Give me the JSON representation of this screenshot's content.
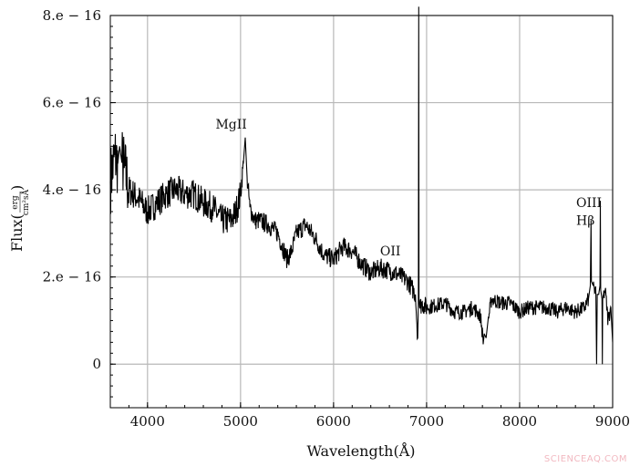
{
  "chart_data": {
    "type": "line",
    "title": "",
    "xlabel": "Wavelength(Å)",
    "ylabel": "Flux(erg / cm²sÅ)",
    "ylabel_parts": {
      "prefix": "Flux(",
      "numerator": "erg",
      "denominator": "cm²sÅ",
      "suffix": ")"
    },
    "xlim": [
      3600,
      9000
    ],
    "ylim": [
      -1e-16,
      8e-16
    ],
    "y_unit": 1e-16,
    "grid": true,
    "x_ticks": [
      4000,
      5000,
      6000,
      7000,
      8000,
      9000
    ],
    "x_tick_labels": [
      "4000",
      "5000",
      "6000",
      "7000",
      "8000",
      "9000"
    ],
    "y_ticks": [
      0,
      2,
      4,
      6,
      8
    ],
    "y_tick_labels": [
      "0",
      "2.e − 16",
      "4.e − 16",
      "6.e − 16",
      "8.e − 16"
    ],
    "series": [
      {
        "color": "#000000",
        "x": [
          3600,
          3650,
          3680,
          3700,
          3720,
          3750,
          3800,
          3900,
          4000,
          4100,
          4200,
          4300,
          4400,
          4500,
          4600,
          4700,
          4800,
          4900,
          4950,
          5000,
          5030,
          5050,
          5070,
          5100,
          5150,
          5200,
          5300,
          5400,
          5500,
          5550,
          5600,
          5700,
          5800,
          5900,
          6000,
          6100,
          6200,
          6300,
          6400,
          6500,
          6600,
          6700,
          6800,
          6880,
          6905,
          6912,
          6915,
          6918,
          6925,
          6950,
          7000,
          7100,
          7200,
          7300,
          7400,
          7500,
          7580,
          7610,
          7620,
          7640,
          7660,
          7700,
          7800,
          7900,
          8000,
          8100,
          8200,
          8300,
          8400,
          8500,
          8600,
          8700,
          8740,
          8760,
          8768,
          8772,
          8790,
          8820,
          8828,
          8834,
          8850,
          8864,
          8868,
          8872,
          8885,
          8889,
          8893,
          8920,
          8950,
          8980,
          9000
        ],
        "y": [
          4.2,
          4.8,
          4.6,
          5.0,
          4.7,
          4.5,
          4.0,
          3.8,
          3.5,
          3.7,
          3.9,
          4.0,
          3.9,
          3.9,
          3.7,
          3.6,
          3.3,
          3.3,
          3.5,
          3.9,
          4.6,
          5.2,
          4.3,
          3.6,
          3.3,
          3.3,
          3.2,
          3.0,
          2.4,
          2.6,
          3.0,
          3.2,
          2.9,
          2.5,
          2.4,
          2.7,
          2.6,
          2.3,
          2.1,
          2.2,
          2.15,
          2.05,
          1.9,
          1.6,
          0.6,
          1.4,
          8.5,
          1.5,
          1.3,
          1.4,
          1.3,
          1.35,
          1.4,
          1.2,
          1.2,
          1.3,
          1.1,
          0.5,
          0.7,
          0.6,
          1.0,
          1.5,
          1.4,
          1.4,
          1.2,
          1.3,
          1.3,
          1.3,
          1.2,
          1.3,
          1.2,
          1.3,
          1.5,
          1.8,
          3.3,
          1.9,
          1.8,
          1.6,
          0.0,
          1.6,
          1.6,
          1.8,
          3.75,
          1.7,
          1.5,
          0.0,
          1.5,
          1.7,
          1.0,
          1.3,
          0.5
        ]
      }
    ],
    "annotations": [
      {
        "text": "MgII",
        "x": 4900,
        "y": 5.4
      },
      {
        "text": "OII",
        "x": 6500,
        "y": 2.5
      },
      {
        "text": "OIII",
        "x": 8760,
        "y": 3.6
      },
      {
        "text": "Hβ",
        "x": 8760,
        "y": 3.2
      }
    ]
  },
  "watermark": "SCIENCEAQ.COM"
}
